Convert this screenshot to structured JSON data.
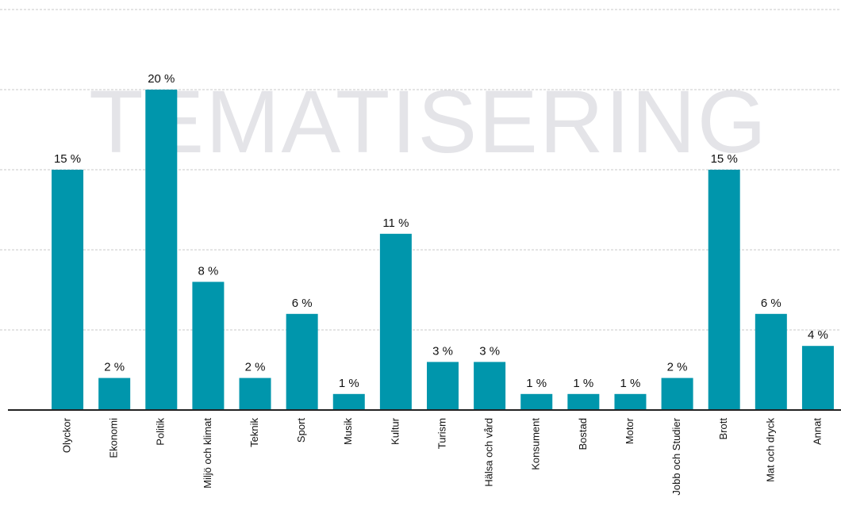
{
  "chart_data": {
    "type": "bar",
    "title": "TEMATISERING",
    "categories": [
      "Olyckor",
      "Ekonomi",
      "Politik",
      "Miljö och klimat",
      "Teknik",
      "Sport",
      "Musik",
      "Kultur",
      "Turism",
      "Hälsa och vård",
      "Konsument",
      "Bostad",
      "Motor",
      "Jobb och Studier",
      "Brott",
      "Mat och dryck",
      "Annat"
    ],
    "values": [
      15,
      2,
      20,
      8,
      2,
      6,
      1,
      11,
      3,
      3,
      1,
      1,
      1,
      2,
      15,
      6,
      4
    ],
    "value_labels": [
      "15 %",
      "2 %",
      "20 %",
      "8 %",
      "2 %",
      "6 %",
      "1 %",
      "11 %",
      "3 %",
      "3 %",
      "1 %",
      "1 %",
      "1 %",
      "2 %",
      "15 %",
      "6 %",
      "4 %"
    ],
    "color": "#0096ac",
    "ylim": [
      0,
      25
    ],
    "yticks": [
      0,
      5,
      10,
      15,
      20,
      25
    ],
    "grid": true
  }
}
